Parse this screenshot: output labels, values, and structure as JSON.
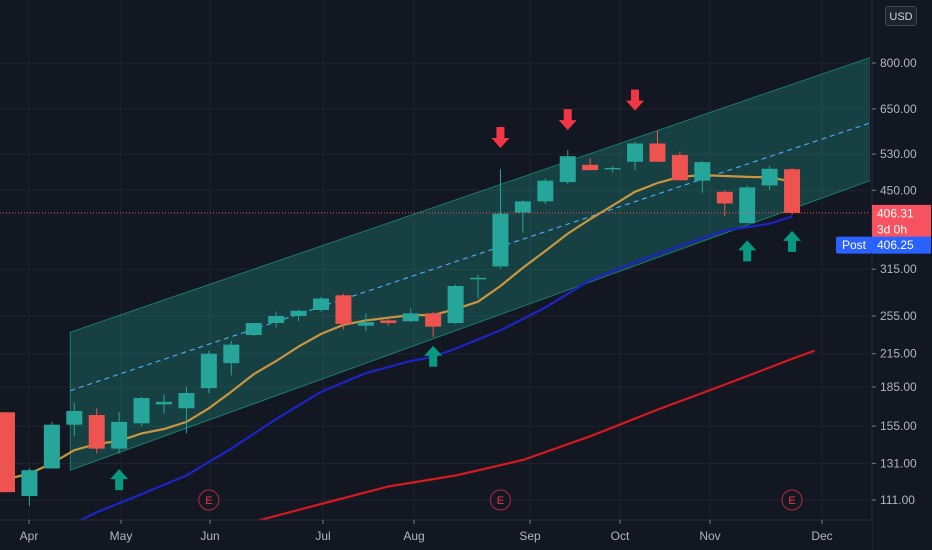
{
  "currency_button": "USD",
  "chart_data": {
    "type": "candlestick",
    "scale": "log",
    "ylim": [
      100,
      1000
    ],
    "y_ticks": [
      "111.00",
      "131.00",
      "155.00",
      "185.00",
      "215.00",
      "255.00",
      "315.00",
      "450.00",
      "530.00",
      "650.00",
      "800.00"
    ],
    "x_tick_labels": [
      "Apr",
      "May",
      "Jun",
      "Jul",
      "Aug",
      "Sep",
      "Oct",
      "Nov",
      "Dec"
    ],
    "candles": [
      {
        "o": 165,
        "h": 165,
        "l": 115,
        "c": 115
      },
      {
        "o": 113,
        "h": 128,
        "l": 108,
        "c": 127
      },
      {
        "o": 128,
        "h": 158,
        "l": 128,
        "c": 156
      },
      {
        "o": 156,
        "h": 172,
        "l": 148,
        "c": 166
      },
      {
        "o": 163,
        "h": 168,
        "l": 137,
        "c": 140
      },
      {
        "o": 140,
        "h": 165,
        "l": 137,
        "c": 158
      },
      {
        "o": 157,
        "h": 177,
        "l": 155,
        "c": 176
      },
      {
        "o": 171,
        "h": 179,
        "l": 164,
        "c": 173
      },
      {
        "o": 168,
        "h": 185,
        "l": 150,
        "c": 180
      },
      {
        "o": 184,
        "h": 218,
        "l": 180,
        "c": 215
      },
      {
        "o": 206,
        "h": 228,
        "l": 195,
        "c": 224
      },
      {
        "o": 234,
        "h": 247,
        "l": 233,
        "c": 247
      },
      {
        "o": 247,
        "h": 260,
        "l": 242,
        "c": 255
      },
      {
        "o": 255,
        "h": 263,
        "l": 249,
        "c": 261
      },
      {
        "o": 262,
        "h": 278,
        "l": 260,
        "c": 276
      },
      {
        "o": 280,
        "h": 282,
        "l": 240,
        "c": 246
      },
      {
        "o": 244,
        "h": 258,
        "l": 238,
        "c": 248
      },
      {
        "o": 250,
        "h": 253,
        "l": 244,
        "c": 247
      },
      {
        "o": 249,
        "h": 264,
        "l": 248,
        "c": 258
      },
      {
        "o": 258,
        "h": 260,
        "l": 232,
        "c": 243
      },
      {
        "o": 247,
        "h": 294,
        "l": 246,
        "c": 292
      },
      {
        "o": 301,
        "h": 307,
        "l": 276,
        "c": 303
      },
      {
        "o": 319,
        "h": 495,
        "l": 316,
        "c": 405
      },
      {
        "o": 407,
        "h": 430,
        "l": 372,
        "c": 428
      },
      {
        "o": 428,
        "h": 475,
        "l": 423,
        "c": 470
      },
      {
        "o": 467,
        "h": 540,
        "l": 463,
        "c": 525
      },
      {
        "o": 505,
        "h": 520,
        "l": 492,
        "c": 493
      },
      {
        "o": 497,
        "h": 502,
        "l": 488,
        "c": 498
      },
      {
        "o": 512,
        "h": 560,
        "l": 493,
        "c": 556
      },
      {
        "o": 556,
        "h": 590,
        "l": 511,
        "c": 512
      },
      {
        "o": 528,
        "h": 536,
        "l": 470,
        "c": 471
      },
      {
        "o": 470,
        "h": 514,
        "l": 445,
        "c": 511
      },
      {
        "o": 447,
        "h": 450,
        "l": 400,
        "c": 424
      },
      {
        "o": 388,
        "h": 460,
        "l": 388,
        "c": 456
      },
      {
        "o": 460,
        "h": 502,
        "l": 451,
        "c": 496
      },
      {
        "o": 495,
        "h": 498,
        "l": 403,
        "c": 406.31
      }
    ],
    "moving_averages": [
      {
        "color": "#c9963f",
        "points": [
          [
            0,
            122
          ],
          [
            1,
            125
          ],
          [
            2,
            131
          ],
          [
            3,
            139
          ],
          [
            4,
            143
          ],
          [
            5,
            145
          ],
          [
            6,
            150
          ],
          [
            7,
            153
          ],
          [
            8,
            158
          ],
          [
            9,
            168
          ],
          [
            10,
            181
          ],
          [
            11,
            196
          ],
          [
            12,
            208
          ],
          [
            13,
            222
          ],
          [
            14,
            235
          ],
          [
            15,
            245
          ],
          [
            16,
            250
          ],
          [
            17,
            253
          ],
          [
            18,
            256
          ],
          [
            19,
            256
          ],
          [
            20,
            263
          ],
          [
            21,
            272
          ],
          [
            22,
            292
          ],
          [
            23,
            317
          ],
          [
            24,
            342
          ],
          [
            25,
            370
          ],
          [
            26,
            395
          ],
          [
            27,
            420
          ],
          [
            28,
            447
          ],
          [
            29,
            465
          ],
          [
            30,
            478
          ],
          [
            31,
            482
          ],
          [
            32,
            480
          ],
          [
            33,
            478
          ],
          [
            34,
            477
          ],
          [
            35,
            468
          ]
        ]
      },
      {
        "color": "#1c24c7",
        "points": [
          [
            3,
            100
          ],
          [
            4,
            105
          ],
          [
            6,
            114
          ],
          [
            8,
            124
          ],
          [
            10,
            140
          ],
          [
            12,
            160
          ],
          [
            14,
            181
          ],
          [
            16,
            197
          ],
          [
            18,
            208
          ],
          [
            19,
            212
          ],
          [
            20,
            220
          ],
          [
            22,
            239
          ],
          [
            24,
            265
          ],
          [
            26,
            300
          ],
          [
            28,
            325
          ],
          [
            30,
            350
          ],
          [
            32,
            375
          ],
          [
            34,
            387
          ],
          [
            35,
            400
          ]
        ]
      },
      {
        "color": "#d41a1f",
        "points": [
          [
            10,
            98
          ],
          [
            14,
            109
          ],
          [
            17,
            118
          ],
          [
            20,
            124
          ],
          [
            23,
            133
          ],
          [
            26,
            148
          ],
          [
            29,
            167
          ],
          [
            32,
            187
          ],
          [
            35,
            210
          ],
          [
            36,
            218
          ]
        ]
      }
    ],
    "channel": {
      "start_index": 3,
      "lower_start": 127,
      "upper_start": 237,
      "mid_start": 182,
      "lower_end": 470,
      "upper_end": 820,
      "mid_end": 610
    },
    "arrows": [
      {
        "index": 5,
        "price": 122,
        "direction": "up",
        "color": "#089981"
      },
      {
        "index": 19,
        "price": 213,
        "direction": "up",
        "color": "#089981"
      },
      {
        "index": 22,
        "price": 570,
        "direction": "down",
        "color": "#f23645"
      },
      {
        "index": 25,
        "price": 618,
        "direction": "down",
        "color": "#f23645"
      },
      {
        "index": 28,
        "price": 675,
        "direction": "down",
        "color": "#f23645"
      },
      {
        "index": 33,
        "price": 343,
        "direction": "up",
        "color": "#089981"
      },
      {
        "index": 35,
        "price": 358,
        "direction": "up",
        "color": "#089981"
      }
    ],
    "earnings": {
      "label": "E",
      "indices": [
        9,
        22,
        35
      ]
    },
    "price_badges": [
      {
        "label": "406.31",
        "price": 406.31,
        "color": "#f7525f"
      },
      {
        "label": "3d 0h",
        "price": 378,
        "color": "#f7525f"
      },
      {
        "label": "406.25",
        "prefix": "Post",
        "price": 352,
        "color": "#2962ff"
      }
    ],
    "last_price_line": 406.31,
    "colors": {
      "up": "#26a69a",
      "down": "#ef5350",
      "background": "#131722",
      "grid": "#1f2330",
      "channel_fill": "#22ab94",
      "midline": "#4aa8e8"
    }
  }
}
